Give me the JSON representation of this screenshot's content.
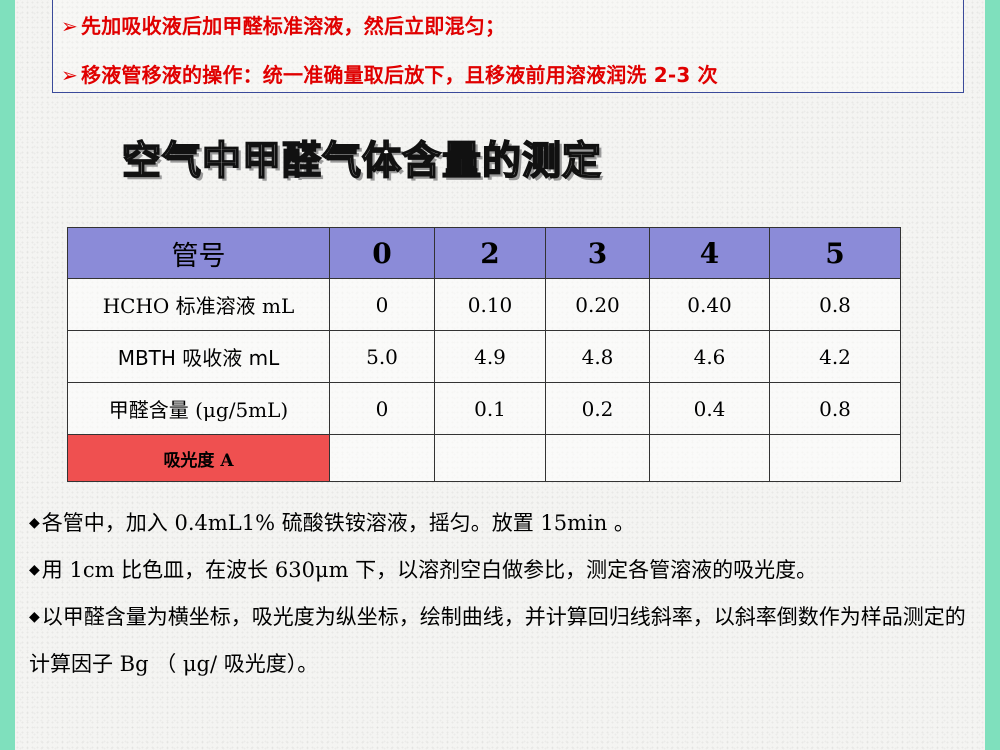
{
  "notes": [
    {
      "marker": "➢",
      "text": "先加吸收液后加甲醛标准溶液，然后立即混匀；"
    },
    {
      "marker": "➢",
      "text": "移液管移液的操作：统一准确量取后放下，且移液前用溶液润洗 2-3 次"
    }
  ],
  "title": "空气中甲醛气体含量的测定",
  "table": {
    "header": [
      "管号",
      "0",
      "2",
      "3",
      "4",
      "5"
    ],
    "rows": [
      {
        "label": "HCHO 标准溶液 mL",
        "values": [
          "0",
          "0.10",
          "0.20",
          "0.40",
          "0.8"
        ]
      },
      {
        "label": "MBTH 吸收液  mL",
        "values": [
          "5.0",
          "4.9",
          "4.8",
          "4.6",
          "4.2"
        ]
      },
      {
        "label": "甲醛含量 (μg/5mL)",
        "values": [
          "0",
          "0.1",
          "0.2",
          "0.4",
          "0.8"
        ]
      },
      {
        "label": "吸光度 A",
        "values": [
          "",
          "",
          "",
          "",
          ""
        ]
      }
    ]
  },
  "bullet_marker": "◆",
  "bullets": [
    "各管中，加入 0.4mL1% 硫酸铁铵溶液，摇匀。放置 15min 。",
    "用 1cm 比色皿，在波长 630μm  下，以溶剂空白做参比，测定各管溶液的吸光度。",
    "以甲醛含量为横坐标，吸光度为纵坐标，绘制曲线，并计算回归线斜率，以斜率倒数作为样品测定的计算因子 Bg （ μg/ 吸光度）。"
  ],
  "colors": {
    "frame": "#7fe0bd",
    "note_text": "#e00000",
    "table_header": "#8b8bd8",
    "highlight_cell": "#ef5050"
  }
}
